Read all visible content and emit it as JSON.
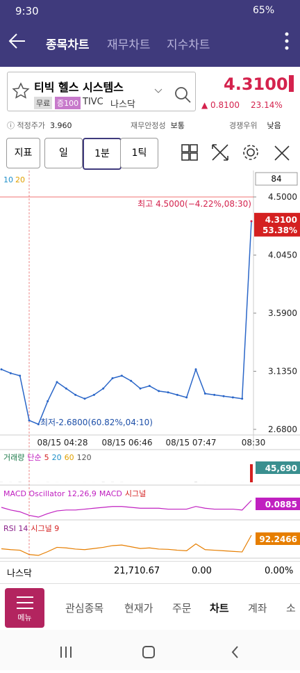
{
  "status_bar": {
    "time": "9:30",
    "battery": "65%"
  },
  "nav": {
    "tabs": [
      "종목차트",
      "재무차트",
      "지수차트"
    ]
  },
  "stock": {
    "name": "티빅 헬스 시스템스",
    "tags": [
      "무료",
      "증100"
    ],
    "ticker": "TIVC",
    "market": "나스닥",
    "price": "4.3100",
    "change": "0.8100",
    "change_pct": "23.14%"
  },
  "info": [
    {
      "label": "적정주가",
      "value": "3.960"
    },
    {
      "label": "재무안정성",
      "value": "보통"
    },
    {
      "label": "경쟁우위",
      "value": "낮음"
    }
  ],
  "toolbar": [
    "지표",
    "일",
    "1분",
    "1틱"
  ],
  "chart": {
    "price": {
      "ma_legend": [
        "10",
        "20"
      ],
      "count_box": "84",
      "ylim": [
        2.636,
        4.707
      ],
      "yticks": [
        {
          "value": 4.5,
          "label": "4.5000"
        },
        {
          "value": 4.045,
          "label": "4.0450"
        },
        {
          "value": 3.59,
          "label": "3.5900"
        },
        {
          "value": 3.135,
          "label": "3.1350"
        },
        {
          "value": 2.68,
          "label": "2.6800"
        }
      ],
      "values": [
        3.15,
        3.12,
        3.1,
        2.75,
        2.72,
        2.9,
        3.05,
        3.0,
        2.95,
        2.92,
        2.95,
        3.0,
        3.08,
        3.1,
        3.06,
        3.0,
        3.02,
        2.98,
        2.97,
        2.95,
        2.93,
        3.15,
        2.96,
        2.95,
        2.94,
        2.93,
        2.92,
        4.31
      ],
      "current": "4.3100",
      "current_pct": "53.38%",
      "high_note": "최고 4.5000(−4.22%,08:30)",
      "low_note": "최저-2.6800(60.82%,04:10)",
      "xlabels": [
        "08/15 04:28",
        "08/15 06:46",
        "08/15 07:47",
        "08:30"
      ]
    },
    "volume": {
      "title_parts": [
        "거래량",
        "단순",
        "5",
        "20",
        "60",
        "120"
      ],
      "values": [
        300,
        200,
        500,
        150,
        100,
        250,
        120,
        80,
        60,
        90,
        100,
        400,
        300,
        250,
        80,
        60,
        70,
        50,
        60,
        40,
        50,
        600,
        80,
        60,
        50,
        40,
        90,
        45690
      ],
      "last": "45,690"
    },
    "macd": {
      "title_parts": [
        "MACD Oscillator 12,26,9",
        "MACD",
        "시그널"
      ],
      "values": [
        0.01,
        -0.02,
        -0.04,
        -0.08,
        -0.1,
        -0.06,
        -0.03,
        -0.02,
        -0.02,
        -0.01,
        0,
        0.01,
        0.02,
        0.02,
        0.01,
        0,
        0,
        0,
        -0.01,
        -0.01,
        -0.01,
        0.02,
        0,
        -0.01,
        -0.01,
        -0.01,
        -0.02,
        0.0885
      ],
      "last": "0.0885"
    },
    "rsi": {
      "title_parts": [
        "RSI 14",
        "시그널 9"
      ],
      "values": [
        45,
        42,
        40,
        25,
        22,
        35,
        50,
        48,
        44,
        42,
        46,
        50,
        56,
        58,
        52,
        46,
        48,
        44,
        43,
        40,
        38,
        62,
        42,
        40,
        38,
        36,
        34,
        92.2466
      ],
      "last": "92.2466"
    }
  },
  "index_row": [
    "나스닥",
    "21,710.67",
    "0.00",
    "0.00%"
  ],
  "bottom_nav": {
    "menu": "메뉴",
    "items": [
      "관심종목",
      "현재가",
      "주문",
      "차트",
      "계좌",
      "소"
    ]
  }
}
